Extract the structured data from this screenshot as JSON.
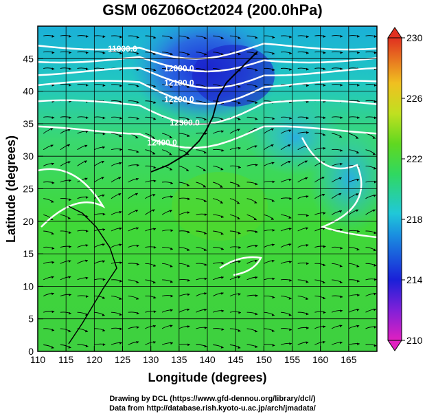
{
  "title": "GSM 06Z06Oct2024 (200.0hPa)",
  "x_axis": {
    "label": "Longitude (degrees)",
    "min": 110,
    "max": 170,
    "ticks": [
      110,
      115,
      120,
      125,
      130,
      135,
      140,
      145,
      150,
      155,
      160,
      165
    ]
  },
  "y_axis": {
    "label": "Latitude  (degrees)",
    "min": 0,
    "max": 50,
    "ticks": [
      0,
      5,
      10,
      15,
      20,
      25,
      30,
      35,
      40,
      45
    ]
  },
  "colorbar": {
    "min": 210,
    "max": 230,
    "ticks": [
      210,
      214,
      218,
      222,
      226,
      230
    ]
  },
  "contours": [
    {
      "label": "11900.0",
      "lat": 47
    },
    {
      "label": "12000.0",
      "lat": 45
    },
    {
      "label": "12100.0",
      "lat": 43
    },
    {
      "label": "12200.0",
      "lat": 41
    },
    {
      "label": "12300.0",
      "lat": 38
    },
    {
      "label": "12400.0",
      "lat": 34
    }
  ],
  "credits": {
    "line1": "Drawing by DCL (https://www.gfd-dennou.org/library/dcl/)",
    "line2": "Data from http://database.rish.kyoto-u.ac.jp/arch/jmadata/"
  }
}
